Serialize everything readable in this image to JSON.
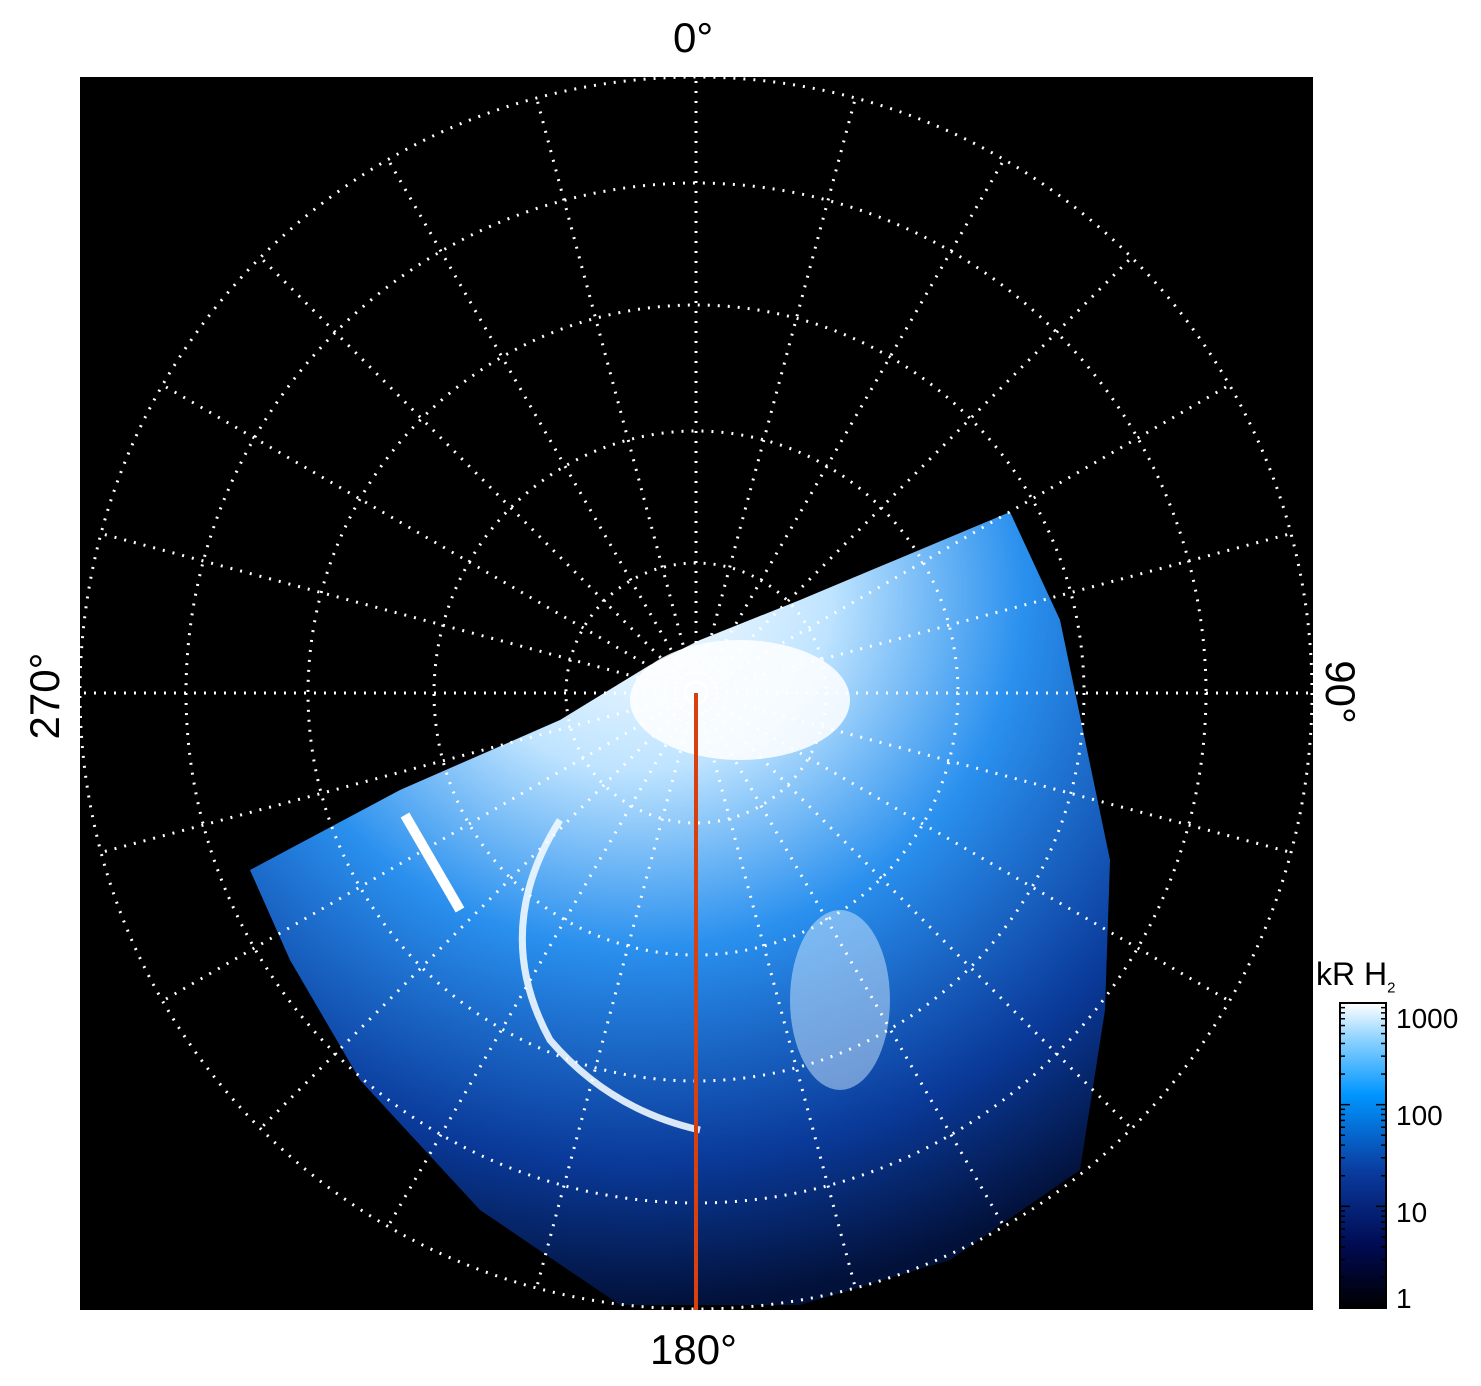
{
  "chart_data": {
    "type": "heatmap",
    "projection": "polar",
    "angle_labels": {
      "top": "0°",
      "right": "90°",
      "bottom": "180°",
      "left": "270°"
    },
    "grid": true,
    "grid_style": "dotted white",
    "radial_spokes_every_deg": 15,
    "rings": 5,
    "background": "#000000",
    "highlight_line_color": "#d9400f",
    "colorbar": {
      "label": "kR H",
      "label_subscript": "2",
      "scale": "log",
      "range": [
        1,
        1000
      ],
      "ticks": [
        "1",
        "10",
        "100",
        "1000"
      ],
      "colors": [
        "#000000",
        "#000a50",
        "#0a3ca0",
        "#0096ff",
        "#8cd2ff",
        "#ffffff"
      ],
      "position": "bottom-right"
    }
  }
}
